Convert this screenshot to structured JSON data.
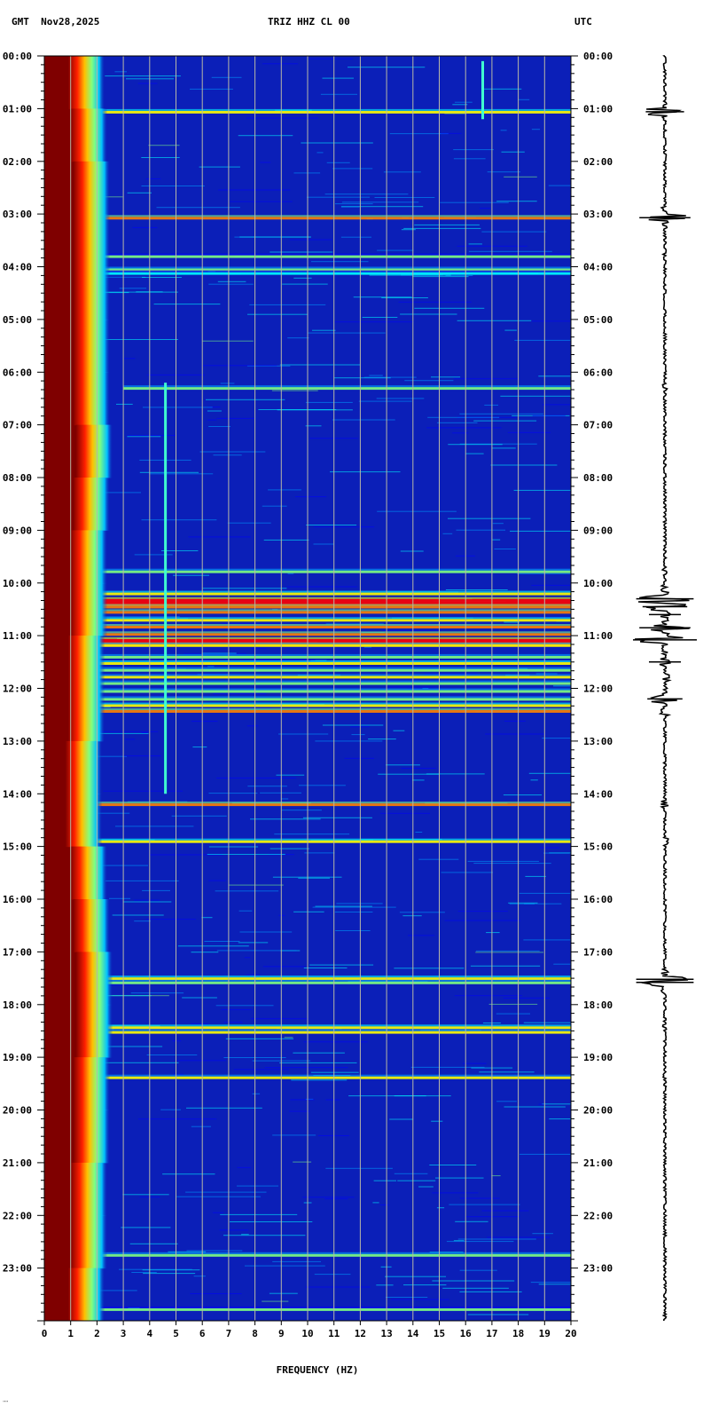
{
  "header": {
    "left": "GMT  Nov28,2025",
    "center": "TRIZ HHZ CL 00",
    "right": "UTC"
  },
  "colors": {
    "background": "#0b1fb8",
    "low_freq_noise": "#7f0000",
    "grid": "#b8b8a6",
    "trace": "#000000",
    "axis": "#000000",
    "colormap": [
      "#00008f",
      "#0000ff",
      "#00a0ff",
      "#00ffff",
      "#80ff80",
      "#ffff00",
      "#ff8000",
      "#ff0000",
      "#7f0000"
    ]
  },
  "corner_mark": "᠁",
  "chart_data": {
    "type": "heatmap",
    "subtype": "spectrogram",
    "xlabel": "FREQUENCY (HZ)",
    "x_unit": "Hz",
    "xlim": [
      0,
      20
    ],
    "x_ticks": [
      "0",
      "1",
      "2",
      "3",
      "4",
      "5",
      "6",
      "7",
      "8",
      "9",
      "10",
      "11",
      "12",
      "13",
      "14",
      "15",
      "16",
      "17",
      "18",
      "19",
      "20"
    ],
    "y_unit": "hours UTC",
    "ylim": [
      0,
      24
    ],
    "y_ticks_left": [
      "00:00",
      "01:00",
      "02:00",
      "03:00",
      "04:00",
      "05:00",
      "06:00",
      "07:00",
      "08:00",
      "09:00",
      "10:00",
      "11:00",
      "12:00",
      "13:00",
      "14:00",
      "15:00",
      "16:00",
      "17:00",
      "18:00",
      "19:00",
      "20:00",
      "21:00",
      "22:00",
      "23:00"
    ],
    "y_ticks_right": [
      "00:00",
      "01:00",
      "02:00",
      "03:00",
      "04:00",
      "05:00",
      "06:00",
      "07:00",
      "08:00",
      "09:00",
      "10:00",
      "11:00",
      "12:00",
      "13:00",
      "14:00",
      "15:00",
      "16:00",
      "17:00",
      "18:00",
      "19:00",
      "20:00",
      "21:00",
      "22:00",
      "23:00"
    ],
    "grid": true,
    "low_frequency_edge": {
      "hours": [
        0,
        1,
        2,
        3,
        4,
        5,
        6,
        7,
        8,
        9,
        10,
        11,
        12,
        13,
        14,
        15,
        16,
        17,
        18,
        19,
        20,
        21,
        22,
        23,
        24
      ],
      "hz": [
        1.1,
        1.2,
        1.3,
        1.3,
        1.5,
        1.3,
        1.3,
        1.6,
        1.4,
        1.3,
        1.2,
        1.2,
        1.1,
        1.1,
        1.0,
        1.2,
        1.3,
        1.4,
        1.5,
        1.4,
        1.3,
        1.3,
        1.2,
        1.2,
        1.1
      ]
    },
    "events": [
      {
        "hour": 1.06,
        "intensity": 0.75,
        "hz_range": [
          1.5,
          20
        ]
      },
      {
        "hour": 3.07,
        "intensity": 0.8,
        "hz_range": [
          1.2,
          20
        ]
      },
      {
        "hour": 3.8,
        "intensity": 0.5,
        "hz_range": [
          1.2,
          20
        ]
      },
      {
        "hour": 4.05,
        "intensity": 0.6,
        "hz_range": [
          1.2,
          20
        ]
      },
      {
        "hour": 4.12,
        "intensity": 0.45,
        "hz_range": [
          1.2,
          20
        ]
      },
      {
        "hour": 6.3,
        "intensity": 0.6,
        "hz_range": [
          3,
          20
        ]
      },
      {
        "hour": 9.78,
        "intensity": 0.55,
        "hz_range": [
          2,
          20
        ]
      },
      {
        "hour": 10.2,
        "intensity": 0.7,
        "hz_range": [
          1,
          20
        ]
      },
      {
        "hour": 10.32,
        "intensity": 1.0,
        "hz_range": [
          1,
          20
        ]
      },
      {
        "hour": 10.45,
        "intensity": 0.85,
        "hz_range": [
          1,
          20
        ]
      },
      {
        "hour": 10.55,
        "intensity": 0.8,
        "hz_range": [
          1,
          20
        ]
      },
      {
        "hour": 10.7,
        "intensity": 0.7,
        "hz_range": [
          1,
          20
        ]
      },
      {
        "hour": 10.83,
        "intensity": 0.9,
        "hz_range": [
          1,
          20
        ]
      },
      {
        "hour": 10.97,
        "intensity": 0.85,
        "hz_range": [
          1,
          20
        ]
      },
      {
        "hour": 11.08,
        "intensity": 0.95,
        "hz_range": [
          1,
          20
        ]
      },
      {
        "hour": 11.18,
        "intensity": 0.75,
        "hz_range": [
          1,
          20
        ]
      },
      {
        "hour": 11.4,
        "intensity": 0.6,
        "hz_range": [
          1,
          20
        ]
      },
      {
        "hour": 11.52,
        "intensity": 0.7,
        "hz_range": [
          1,
          20
        ]
      },
      {
        "hour": 11.65,
        "intensity": 0.55,
        "hz_range": [
          1,
          20
        ]
      },
      {
        "hour": 11.78,
        "intensity": 0.65,
        "hz_range": [
          1,
          20
        ]
      },
      {
        "hour": 11.9,
        "intensity": 0.55,
        "hz_range": [
          1,
          20
        ]
      },
      {
        "hour": 12.05,
        "intensity": 0.6,
        "hz_range": [
          1,
          20
        ]
      },
      {
        "hour": 12.2,
        "intensity": 0.55,
        "hz_range": [
          1,
          20
        ]
      },
      {
        "hour": 12.32,
        "intensity": 0.7,
        "hz_range": [
          1,
          20
        ]
      },
      {
        "hour": 12.43,
        "intensity": 0.8,
        "hz_range": [
          1,
          20
        ]
      },
      {
        "hour": 14.2,
        "intensity": 0.8,
        "hz_range": [
          1,
          20
        ]
      },
      {
        "hour": 14.9,
        "intensity": 0.7,
        "hz_range": [
          1,
          20
        ]
      },
      {
        "hour": 17.5,
        "intensity": 0.75,
        "hz_range": [
          2,
          20
        ]
      },
      {
        "hour": 17.58,
        "intensity": 0.55,
        "hz_range": [
          2,
          20
        ]
      },
      {
        "hour": 18.43,
        "intensity": 0.7,
        "hz_range": [
          1,
          20
        ]
      },
      {
        "hour": 18.52,
        "intensity": 0.65,
        "hz_range": [
          1,
          20
        ]
      },
      {
        "hour": 19.38,
        "intensity": 0.65,
        "hz_range": [
          2,
          20
        ]
      },
      {
        "hour": 22.75,
        "intensity": 0.55,
        "hz_range": [
          2,
          20
        ]
      },
      {
        "hour": 23.78,
        "intensity": 0.5,
        "hz_range": [
          1,
          20
        ]
      }
    ],
    "tonal_lines": [
      {
        "hz": 4.6,
        "hour_start": 6.2,
        "hour_end": 14.0
      },
      {
        "hz": 16.65,
        "hour_start": 0.1,
        "hour_end": 1.2
      }
    ],
    "trace": {
      "type": "seismogram",
      "hours": [
        0.0,
        1.06,
        3.07,
        3.8,
        6.3,
        9.8,
        10.1,
        10.3,
        10.45,
        10.6,
        10.85,
        11.08,
        11.3,
        11.5,
        11.8,
        12.2,
        12.45,
        14.2,
        14.9,
        17.52,
        17.58,
        18.45,
        19.38,
        23.9
      ],
      "amplitude": [
        0.1,
        0.6,
        0.8,
        0.2,
        0.25,
        0.25,
        0.35,
        0.9,
        0.7,
        0.5,
        0.8,
        1.0,
        0.4,
        0.5,
        0.45,
        0.55,
        0.45,
        0.4,
        0.35,
        0.9,
        0.9,
        0.2,
        0.2,
        0.15
      ]
    }
  }
}
